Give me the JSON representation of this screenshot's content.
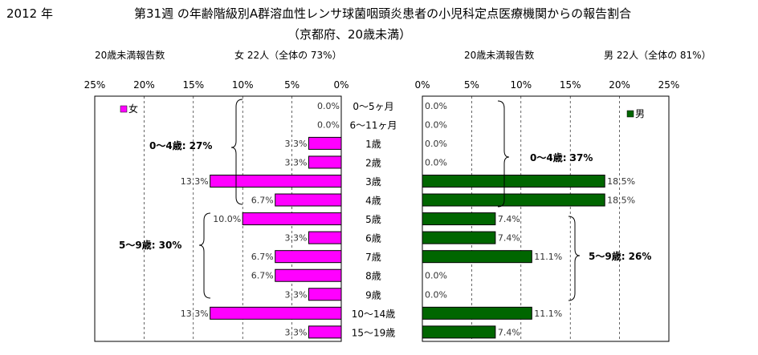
{
  "header": {
    "year": "2012 年",
    "title_line1": "第31週 の年齢階級別A群溶血性レンサ球菌咽頭炎患者の小児科定点医療機関からの報告割合",
    "title_line2": "（京都府、20歳未満）"
  },
  "female": {
    "count_label": "20歳未満報告数",
    "summary": "女 22人（全体の 73%）",
    "legend": "女",
    "color": "#ff00ff",
    "group_0_4": "0～4歳: 27%",
    "group_5_9": "5～9歳: 30%"
  },
  "male": {
    "count_label": "20歳未満報告数",
    "summary": "男 22人（全体の 81%）",
    "legend": "男",
    "color": "#006600",
    "group_0_4": "0～4歳: 37%",
    "group_5_9": "5～9歳: 26%"
  },
  "chart_data": {
    "type": "bar",
    "orientation": "horizontal",
    "categories": [
      "0～5ヶ月",
      "6～11ヶ月",
      "1歳",
      "2歳",
      "3歳",
      "4歳",
      "5歳",
      "6歳",
      "7歳",
      "8歳",
      "9歳",
      "10～14歳",
      "15～19歳"
    ],
    "axis_ticks": [
      "0%",
      "5%",
      "10%",
      "15%",
      "20%",
      "25%"
    ],
    "xlim": [
      0,
      25
    ],
    "grid": true,
    "series": [
      {
        "name": "女",
        "values": [
          0,
          0,
          3.3,
          3.3,
          13.3,
          6.7,
          10.0,
          3.3,
          6.7,
          6.7,
          3.3,
          13.3,
          3.3
        ],
        "labels": [
          "0.0%",
          "0.0%",
          "3.3%",
          "3.3%",
          "13.3%",
          "6.7%",
          "10.0%",
          "3.3%",
          "6.7%",
          "6.7%",
          "3.3%",
          "13.3%",
          "3.3%"
        ]
      },
      {
        "name": "男",
        "values": [
          0,
          0,
          0,
          0,
          18.5,
          18.5,
          7.4,
          7.4,
          11.1,
          0,
          0,
          11.1,
          7.4
        ],
        "labels": [
          "0.0%",
          "0.0%",
          "0.0%",
          "0.0%",
          "18.5%",
          "18.5%",
          "7.4%",
          "7.4%",
          "11.1%",
          "0.0%",
          "0.0%",
          "11.1%",
          "7.4%"
        ]
      }
    ]
  }
}
